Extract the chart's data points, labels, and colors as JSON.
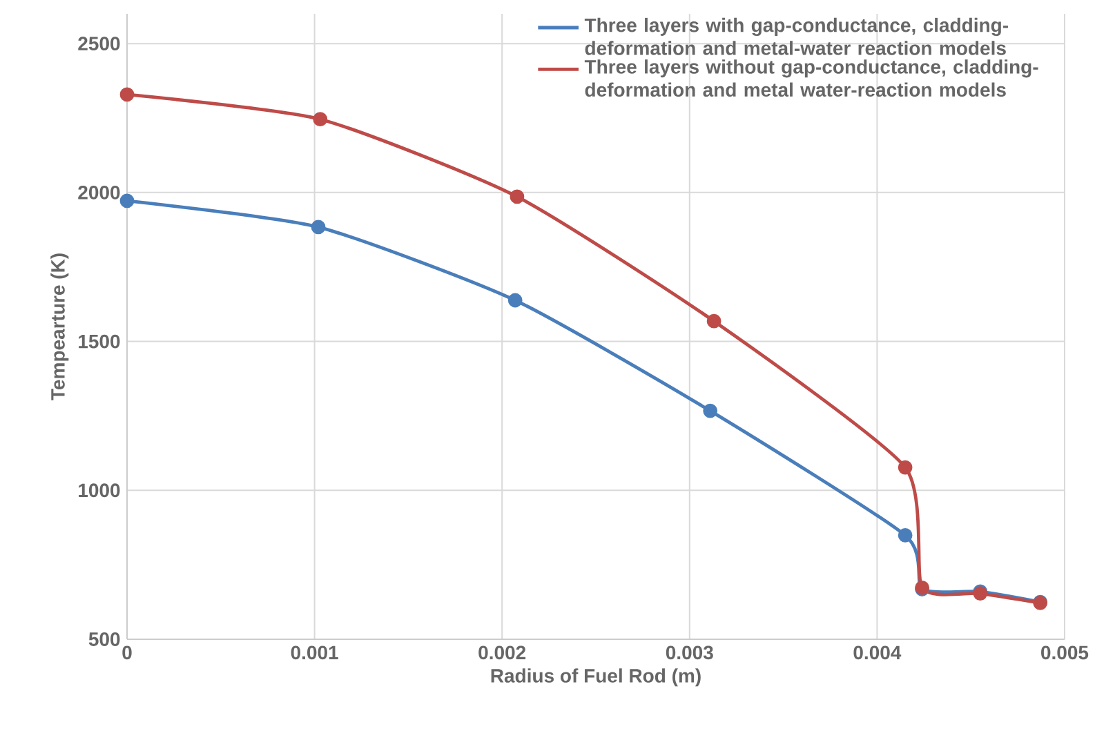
{
  "chart_data": {
    "type": "line",
    "xlabel": "Radius of Fuel Rod (m)",
    "ylabel": "Tempearture (K)",
    "xlim": [
      0,
      0.005
    ],
    "xticks": [
      0,
      0.001,
      0.002,
      0.003,
      0.004,
      0.005
    ],
    "ylim": [
      500,
      2600
    ],
    "yticks": [
      500,
      1000,
      1500,
      2000,
      2500
    ],
    "grid": true,
    "legend": "top right",
    "marker": "circle",
    "series": [
      {
        "name": "Three layers with gap-conductance, cladding-deformation and metal-water reaction models",
        "color": "#4a7ebb",
        "x": [
          0,
          0.00102,
          0.00207,
          0.00311,
          0.00415,
          0.00424,
          0.00455,
          0.00487
        ],
        "values": [
          1972,
          1884,
          1638,
          1267,
          849,
          668,
          660,
          625
        ]
      },
      {
        "name": "Three layers without gap-conductance, cladding-deformation and metal water-reaction models",
        "color": "#be4b48",
        "x": [
          0,
          0.00103,
          0.00208,
          0.00313,
          0.00415,
          0.00424,
          0.00455,
          0.00487
        ],
        "values": [
          2329,
          2246,
          1986,
          1568,
          1077,
          673,
          654,
          622
        ]
      }
    ]
  }
}
